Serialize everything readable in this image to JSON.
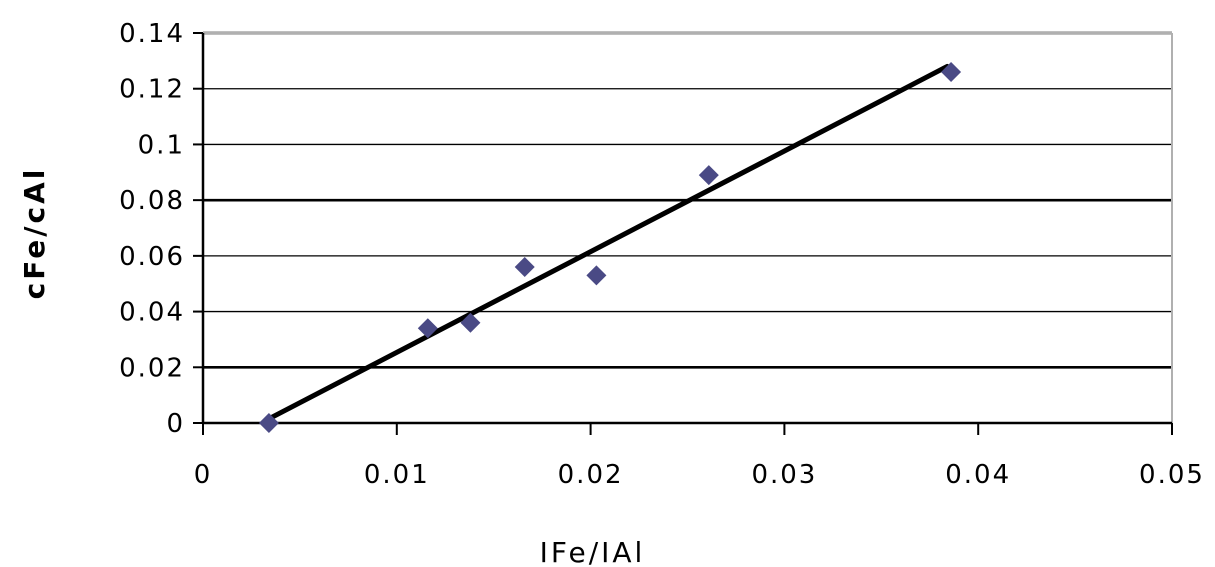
{
  "chart_data": {
    "type": "scatter",
    "xlabel": "IFe/IAl",
    "ylabel": "cFe/cAl",
    "xlim": [
      0,
      0.05
    ],
    "ylim": [
      0,
      0.14
    ],
    "x_ticks": [
      "0",
      "0.01",
      "0.02",
      "0.03",
      "0.04",
      "0.05"
    ],
    "y_ticks": [
      "0",
      "0.02",
      "0.04",
      "0.06",
      "0.08",
      "0.1",
      "0.12",
      "0.14"
    ],
    "grid": true,
    "legend": "none",
    "series": [
      {
        "marker": "diamond",
        "color": "#4a4a85",
        "points": [
          {
            "x": 0.0034,
            "y": 0.0
          },
          {
            "x": 0.0116,
            "y": 0.034
          },
          {
            "x": 0.0138,
            "y": 0.036
          },
          {
            "x": 0.0166,
            "y": 0.056
          },
          {
            "x": 0.0203,
            "y": 0.053
          },
          {
            "x": 0.0261,
            "y": 0.089
          },
          {
            "x": 0.0386,
            "y": 0.126
          }
        ]
      }
    ],
    "trendline": {
      "type": "linear",
      "color": "#000000",
      "from": {
        "x": 0.0034,
        "y": 0.0015
      },
      "to": {
        "x": 0.0384,
        "y": 0.128
      }
    }
  }
}
